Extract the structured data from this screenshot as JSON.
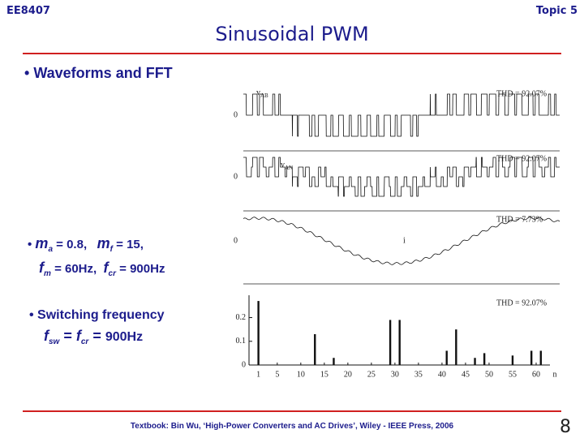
{
  "header": {
    "left": "EE8407",
    "right": "Topic 5",
    "title": "Sinusoidal PWM"
  },
  "bullets": {
    "b1": "Waveforms and FFT",
    "b2_line1": [
      "m",
      "a",
      " = 0.8, ",
      "m",
      "f",
      " = 15,"
    ],
    "b2_line2": [
      "f",
      "m",
      " = 60Hz, ",
      "f",
      "cr",
      " = 900Hz"
    ],
    "b3": "Switching frequency",
    "b3_line2": [
      "f",
      "sw",
      " = ",
      "f",
      "cr",
      " = ",
      "900Hz"
    ]
  },
  "figure": {
    "labels": {
      "p1_name": "v",
      "p1_sub": "AB",
      "p2_name": "v",
      "p2_sub": "AN",
      "p3_name": "i",
      "zero1": "0",
      "zero2": "0",
      "zero3": "0"
    },
    "thd": [
      "THD = 92.07%",
      "THD = 92.07%",
      "THD = 7.73%",
      "THD = 92.07%"
    ],
    "spectrum": {
      "n": [
        1,
        13,
        17,
        29,
        31,
        41,
        43,
        47,
        49,
        55,
        59,
        61
      ],
      "values": [
        0.27,
        0.13,
        0.03,
        0.19,
        0.19,
        0.06,
        0.15,
        0.03,
        0.05,
        0.04,
        0.06,
        0.06
      ],
      "xlim": [
        -1,
        65
      ],
      "ylim": [
        0,
        0.26
      ],
      "xticks": [
        1,
        5,
        10,
        15,
        20,
        25,
        30,
        35,
        40,
        45,
        50,
        55,
        60
      ],
      "xlabel": "n",
      "yticks": [
        0,
        0.1,
        0.2
      ]
    }
  },
  "footer": {
    "text": "Textbook: Bin Wu, ‘High-Power Converters and AC Drives’, Wiley - IEEE Press, 2006",
    "page": "8"
  }
}
